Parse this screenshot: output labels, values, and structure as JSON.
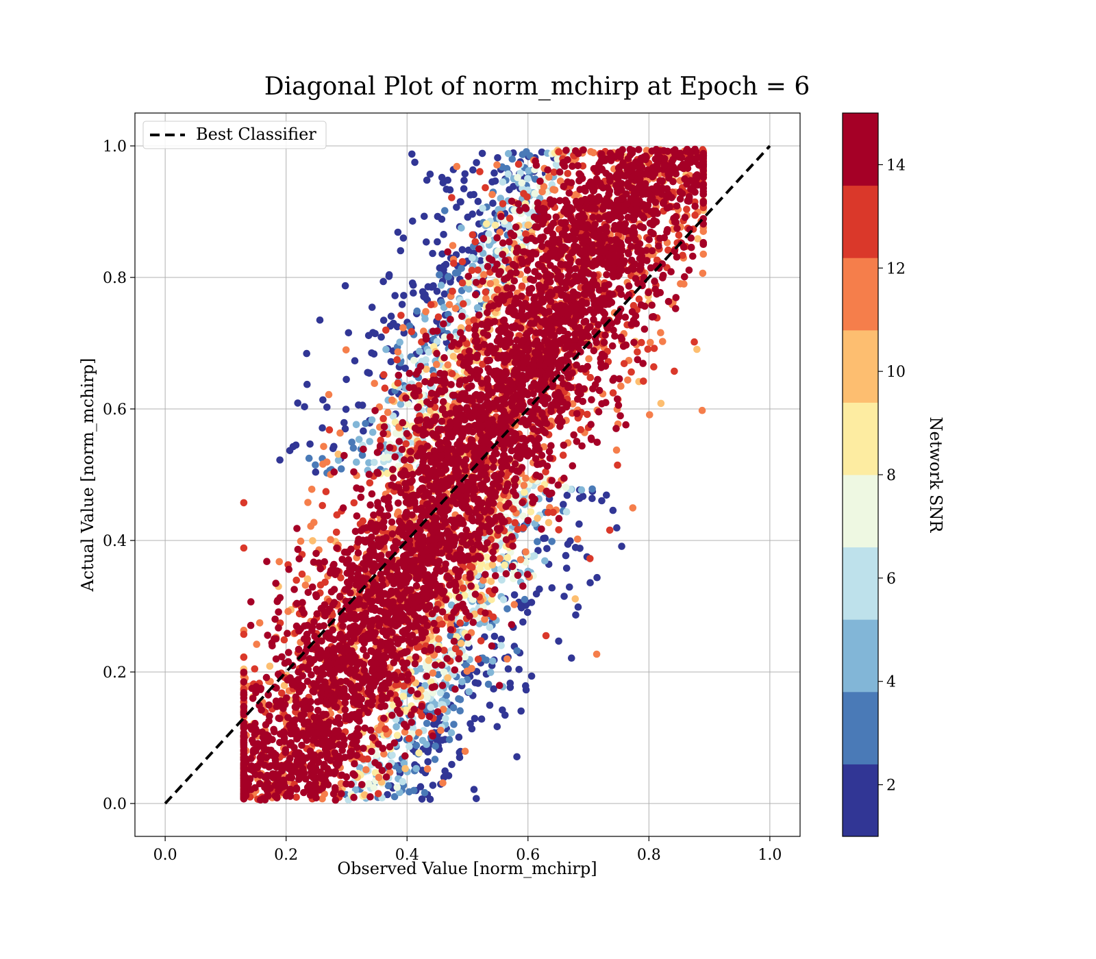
{
  "chart_data": {
    "type": "scatter",
    "title": "Diagonal Plot of norm_mchirp at Epoch = 6",
    "xlabel": "Observed Value [norm_mchirp]",
    "ylabel": "Actual Value [norm_mchirp]",
    "xlim": [
      -0.05,
      1.05
    ],
    "ylim": [
      -0.05,
      1.05
    ],
    "x_ticks": [
      "0.0",
      "0.2",
      "0.4",
      "0.6",
      "0.8",
      "1.0"
    ],
    "y_ticks": [
      "0.0",
      "0.2",
      "0.4",
      "0.6",
      "0.8",
      "1.0"
    ],
    "grid": true,
    "legend": {
      "placement": "upper-left",
      "entries": [
        {
          "label": "Best Classifier",
          "style": "dashed",
          "color": "#000000"
        }
      ]
    },
    "reference_line": {
      "label": "Best Classifier",
      "x": [
        0.0,
        1.0
      ],
      "y": [
        0.0,
        1.0
      ]
    },
    "colorbar": {
      "label": "Network SNR",
      "range": [
        1,
        15
      ],
      "ticks": [
        "2",
        "4",
        "6",
        "8",
        "10",
        "12",
        "14"
      ],
      "bins": [
        {
          "from": 1,
          "to": 2.4,
          "color": "#313695"
        },
        {
          "from": 2.4,
          "to": 3.8,
          "color": "#4a7ab7"
        },
        {
          "from": 3.8,
          "to": 5.2,
          "color": "#82b6d7"
        },
        {
          "from": 5.2,
          "to": 6.6,
          "color": "#bee1eb"
        },
        {
          "from": 6.6,
          "to": 8.0,
          "color": "#eef8e2"
        },
        {
          "from": 8.0,
          "to": 9.4,
          "color": "#fdeca1"
        },
        {
          "from": 9.4,
          "to": 10.8,
          "color": "#fdbe70"
        },
        {
          "from": 10.8,
          "to": 12.2,
          "color": "#f57e4b"
        },
        {
          "from": 12.2,
          "to": 13.6,
          "color": "#da382a"
        },
        {
          "from": 13.6,
          "to": 15,
          "color": "#a50026"
        }
      ]
    },
    "scatter_distribution": {
      "description_of_series": "points clustered along diagonal, color = Network SNR",
      "x_range": [
        0.13,
        0.89
      ],
      "y_range": [
        0.0,
        1.0
      ],
      "high_snr_band_halfwidth": 0.1,
      "low_snr_regions": [
        "upper-left of diagonal (x 0.25-0.6, y 0.6-1.0)",
        "lower-right of diagonal (x 0.45-0.75, y 0.0-0.35)"
      ]
    }
  }
}
